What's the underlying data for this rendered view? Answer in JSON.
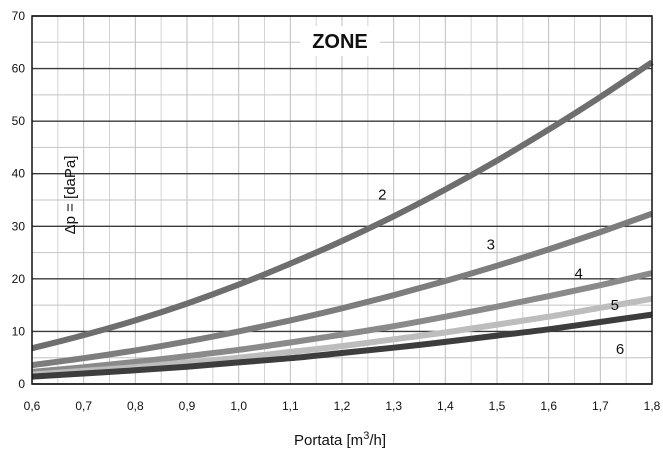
{
  "chart_data": {
    "type": "line",
    "title": "ZONE",
    "xlabel_main": "Portata [m",
    "xlabel_sup": "3",
    "xlabel_end": "/h]",
    "ylabel": "Δp = [daPa]",
    "xlim": [
      0.6,
      1.8
    ],
    "ylim": [
      0,
      70
    ],
    "x_ticks": [
      "0,6",
      "0,7",
      "0,8",
      "0,9",
      "1,0",
      "1,1",
      "1,2",
      "1,3",
      "1,4",
      "1,5",
      "1,6",
      "1,7",
      "1,8"
    ],
    "y_ticks": [
      "0",
      "10",
      "20",
      "30",
      "40",
      "50",
      "60",
      "70"
    ],
    "grid": true,
    "x": [
      0.6,
      0.7,
      0.8,
      0.9,
      1.0,
      1.1,
      1.2,
      1.3,
      1.4,
      1.5,
      1.6,
      1.7,
      1.8
    ],
    "series": [
      {
        "name": "2",
        "color": "#6e6e6e",
        "values": [
          6.8,
          9.3,
          12.1,
          15.3,
          18.9,
          22.9,
          27.2,
          31.9,
          37.0,
          42.5,
          48.4,
          54.6,
          61.2
        ],
        "label_pos": [
          1.27,
          36
        ]
      },
      {
        "name": "3",
        "color": "#7d7d7d",
        "values": [
          3.6,
          4.9,
          6.4,
          8.1,
          10.0,
          12.1,
          14.4,
          16.9,
          19.6,
          22.5,
          25.6,
          28.9,
          32.4
        ],
        "label_pos": [
          1.48,
          26.5
        ]
      },
      {
        "name": "4",
        "color": "#8a8a8a",
        "values": [
          2.3,
          3.2,
          4.2,
          5.3,
          6.5,
          7.9,
          9.4,
          11.0,
          12.8,
          14.7,
          16.7,
          18.8,
          21.1
        ],
        "label_pos": [
          1.65,
          21
        ]
      },
      {
        "name": "5",
        "color": "#bdbdbd",
        "values": [
          1.8,
          2.5,
          3.2,
          4.1,
          5.0,
          6.1,
          7.2,
          8.5,
          9.8,
          11.3,
          12.8,
          14.5,
          16.2
        ],
        "label_pos": [
          1.72,
          15
        ]
      },
      {
        "name": "6",
        "color": "#3d3d3d",
        "values": [
          1.4,
          2.0,
          2.6,
          3.3,
          4.1,
          4.9,
          5.9,
          6.9,
          8.0,
          9.2,
          10.4,
          11.8,
          13.2
        ],
        "label_pos": [
          1.73,
          6.7
        ]
      }
    ]
  }
}
